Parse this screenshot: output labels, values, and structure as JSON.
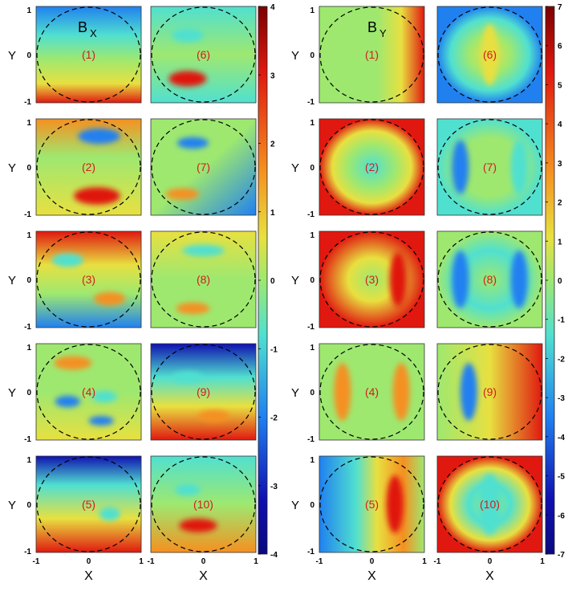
{
  "chart_data": [
    {
      "type": "heatmap",
      "title": "B",
      "title_subscript": "X",
      "xlabel": "X",
      "ylabel": "Y",
      "x_ticks": [
        "-1",
        "0",
        "1"
      ],
      "y_ticks": [
        "1",
        "0",
        "-1"
      ],
      "xlim": [
        -1,
        1
      ],
      "ylim": [
        -1,
        1
      ],
      "panel_labels": [
        "(1)",
        "(2)",
        "(3)",
        "(4)",
        "(5)",
        "(6)",
        "(7)",
        "(8)",
        "(9)",
        "(10)"
      ],
      "colorbar": {
        "range": [
          -4,
          4
        ],
        "ticks": [
          "4",
          "3",
          "2",
          "1",
          "0",
          "-1",
          "-2",
          "-3",
          "-4"
        ]
      },
      "overlay": "dashed unit circle"
    },
    {
      "type": "heatmap",
      "title": "B",
      "title_subscript": "Y",
      "xlabel": "X",
      "ylabel": "Y",
      "x_ticks": [
        "-1",
        "0",
        "1"
      ],
      "y_ticks": [
        "1",
        "0",
        "-1"
      ],
      "xlim": [
        -1,
        1
      ],
      "ylim": [
        -1,
        1
      ],
      "panel_labels": [
        "(1)",
        "(2)",
        "(3)",
        "(4)",
        "(5)",
        "(6)",
        "(7)",
        "(8)",
        "(9)",
        "(10)"
      ],
      "colorbar": {
        "range": [
          -7,
          7
        ],
        "ticks": [
          "7",
          "6",
          "5",
          "4",
          "3",
          "2",
          "1",
          "0",
          "-1",
          "-2",
          "-3",
          "-4",
          "-5",
          "-6",
          "-7"
        ]
      },
      "overlay": "dashed unit circle"
    }
  ]
}
